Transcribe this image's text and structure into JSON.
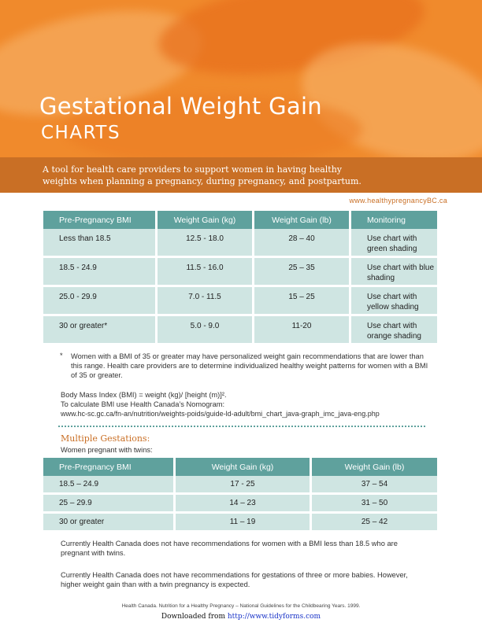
{
  "header": {
    "title": "Gestational Weight Gain",
    "subtitle": "CHARTS",
    "tagline": "A tool for health care providers to support women in having healthy weights when planning a pregnancy, during pregnancy, and postpartum.",
    "website": "www.healthypregnancyBC.ca"
  },
  "table1": {
    "headers": [
      "Pre-Pregnancy BMI",
      "Weight Gain (kg)",
      "Weight Gain (lb)",
      "Monitoring"
    ],
    "rows": [
      [
        "Less than 18.5",
        "12.5 - 18.0",
        "28 – 40",
        "Use chart with green shading"
      ],
      [
        "18.5 - 24.9",
        "11.5 - 16.0",
        "25 – 35",
        "Use chart with blue shading"
      ],
      [
        "25.0 - 29.9",
        "7.0 - 11.5",
        "15 – 25",
        "Use chart with yellow shading"
      ],
      [
        "30 or greater*",
        "5.0 - 9.0",
        "11-20",
        "Use chart with orange shading"
      ]
    ]
  },
  "notes": {
    "footnote_marker": "*",
    "footnote": "Women with a BMI of 35 or greater may have personalized weight gain recommendations that are lower than this range. Health care providers are to determine individualized healthy weight patterns for women with a BMI of 35 or greater.",
    "bmi_formula": "Body Mass Index (BMI) = weight (kg)/ [height (m)]².",
    "bmi_calc": "To calculate BMI use Health Canada’s Nomogram:",
    "bmi_url": "www.hc-sc.gc.ca/fn-an/nutrition/weights-poids/guide-ld-adult/bmi_chart_java-graph_imc_java-eng.php"
  },
  "multiple": {
    "heading": "Multiple Gestations:",
    "intro": "Women pregnant with twins:",
    "headers": [
      "Pre-Pregnancy BMI",
      "Weight Gain (kg)",
      "Weight Gain (lb)"
    ],
    "rows": [
      [
        "18.5 – 24.9",
        "17 - 25",
        "37 – 54"
      ],
      [
        "25 – 29.9",
        "14 – 23",
        "31 – 50"
      ],
      [
        "30 or greater",
        "11 – 19",
        "25 – 42"
      ]
    ],
    "note1": "Currently Health Canada does not have recommendations for women with a BMI less than 18.5 who are pregnant with twins.",
    "note2": "Currently Health Canada does not have recommendations for gestations of three or more babies. However, higher weight gain than with a twin pregnancy is expected."
  },
  "footer": {
    "source": "Health Canada. Nutrition for a Healthy Pregnancy – National Guidelines for the Childbearing Years. 1999.",
    "downloaded_prefix": "Downloaded from",
    "downloaded_link": "http://www.tidyforms.com"
  },
  "colors": {
    "orange": "#f08a2c",
    "banner": "#c96f25",
    "teal": "#5fa19d",
    "cell": "#cfe5e2"
  }
}
